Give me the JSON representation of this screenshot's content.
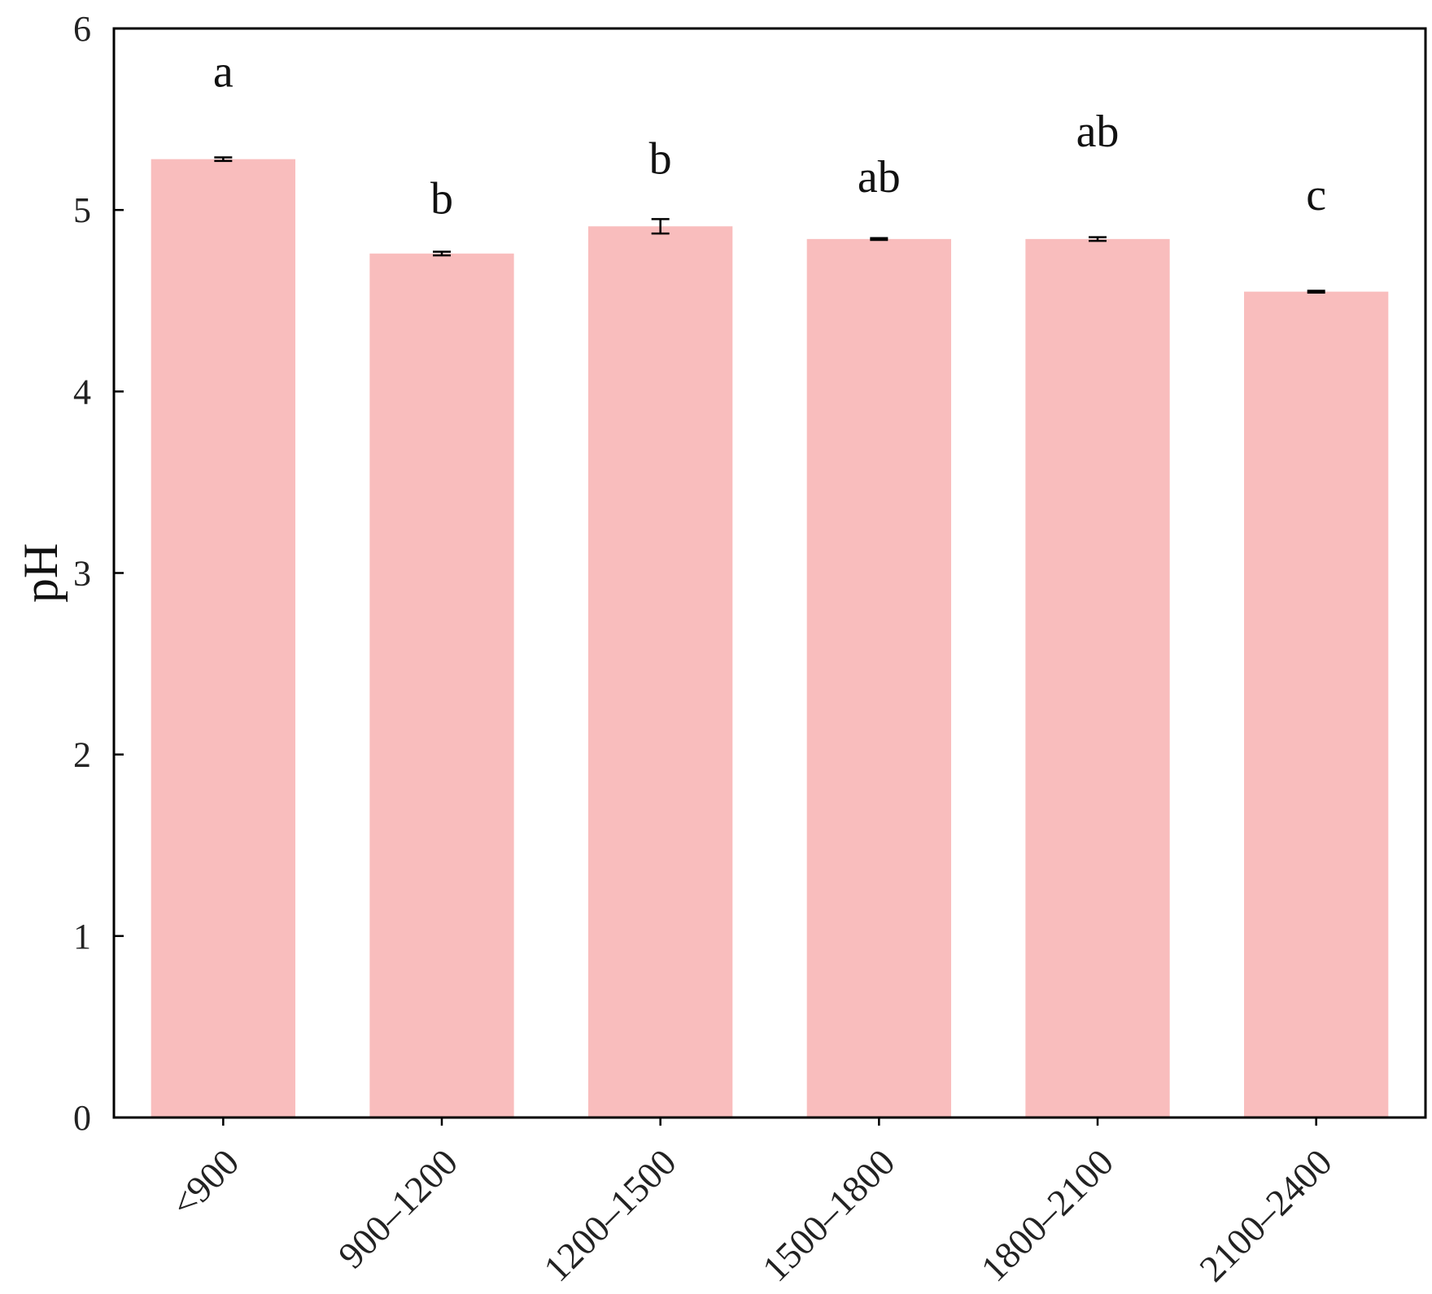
{
  "chart_data": {
    "type": "bar",
    "title": "",
    "xlabel": "",
    "ylabel": "pH",
    "ylim": [
      0,
      6
    ],
    "yticks": [
      0,
      1,
      2,
      3,
      4,
      5,
      6
    ],
    "grid": false,
    "bar_color": "#f9bdbd",
    "categories": [
      "<900",
      "900–1200",
      "1200–1500",
      "1500–1800",
      "1800–2100",
      "2100–2400"
    ],
    "values": [
      5.28,
      4.76,
      4.91,
      4.84,
      4.84,
      4.55
    ],
    "errors": [
      0.01,
      0.01,
      0.04,
      0.005,
      0.01,
      0.005
    ],
    "significance": [
      "a",
      "b",
      "b",
      "ab",
      "ab",
      "c"
    ],
    "significance_y": [
      5.68,
      4.98,
      5.2,
      5.1,
      5.35,
      5.0
    ]
  }
}
